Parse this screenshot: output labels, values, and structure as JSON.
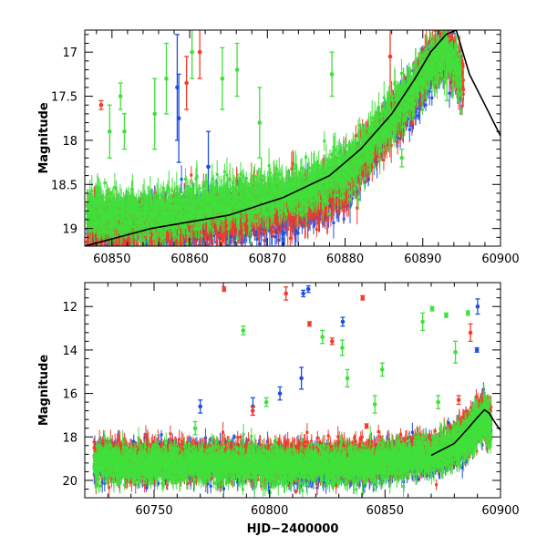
{
  "colors": {
    "blue": "#1f4fe0",
    "red": "#f43b28",
    "green": "#3fe03a",
    "model": "#000000"
  },
  "chart_data": [
    {
      "type": "scatter",
      "title": "",
      "xlabel": "",
      "ylabel": "Magnitude",
      "xlim": [
        60846.5,
        60900
      ],
      "ylim": [
        19.2,
        16.75
      ],
      "y_inverted": true,
      "x_ticks": [
        60850,
        60860,
        60870,
        60880,
        60890,
        60900
      ],
      "x_tick_labels": [
        "60850",
        "60860",
        "60870",
        "60880",
        "60890",
        "60900"
      ],
      "y_ticks": [
        17,
        17.5,
        18,
        18.5,
        19
      ],
      "y_tick_labels": [
        "17",
        "17.5",
        "18",
        "18.5",
        "19"
      ],
      "grid": false,
      "series": [
        {
          "color": "blue",
          "trend": [
            [
              60847,
              19.05
            ],
            [
              60855,
              18.95
            ],
            [
              60865,
              18.9
            ],
            [
              60875,
              18.75
            ],
            [
              60880,
              18.55
            ],
            [
              60884,
              18.0
            ],
            [
              60888,
              17.6
            ],
            [
              60891,
              17.2
            ],
            [
              60893,
              17.0
            ],
            [
              60894,
              17.2
            ],
            [
              60895,
              17.35
            ]
          ],
          "outliers": [
            [
              60858.4,
              17.4,
              0.6
            ],
            [
              60858.6,
              17.75,
              0.5
            ],
            [
              60862.4,
              18.3,
              0.4
            ],
            [
              60893.2,
              16.75,
              0.4
            ]
          ]
        },
        {
          "color": "red",
          "trend": [
            [
              60847,
              19.0
            ],
            [
              60855,
              18.95
            ],
            [
              60865,
              18.85
            ],
            [
              60875,
              18.7
            ],
            [
              60880,
              18.5
            ],
            [
              60884,
              18.0
            ],
            [
              60888,
              17.55
            ],
            [
              60891,
              17.1
            ],
            [
              60893,
              16.95
            ],
            [
              60894,
              17.15
            ],
            [
              60895.3,
              17.3
            ]
          ],
          "outliers": [
            [
              60848.6,
              17.6,
              0.05
            ],
            [
              60859.6,
              17.35,
              0.3
            ],
            [
              60861.3,
              17.0,
              0.3
            ],
            [
              60885.8,
              17.05,
              0.5
            ]
          ]
        },
        {
          "color": "green",
          "trend": [
            [
              60847,
              18.8
            ],
            [
              60855,
              18.85
            ],
            [
              60865,
              18.7
            ],
            [
              60875,
              18.55
            ],
            [
              60880,
              18.35
            ],
            [
              60884,
              17.95
            ],
            [
              60888,
              17.5
            ],
            [
              60891,
              17.15
            ],
            [
              60893,
              17.0
            ],
            [
              60895,
              17.3
            ]
          ],
          "outliers": [
            [
              60849.7,
              17.9,
              0.3
            ],
            [
              60851.1,
              17.5,
              0.15
            ],
            [
              60851.6,
              17.9,
              0.2
            ],
            [
              60855.5,
              17.7,
              0.4
            ],
            [
              60857.0,
              17.3,
              0.4
            ],
            [
              60860.3,
              17.0,
              0.3
            ],
            [
              60864.2,
              17.3,
              0.35
            ],
            [
              60866.1,
              17.2,
              0.3
            ],
            [
              60869.0,
              17.8,
              0.4
            ],
            [
              60878.3,
              17.25,
              0.25
            ],
            [
              60887.3,
              18.2,
              0.1
            ],
            [
              60893.1,
              17.2,
              0.35
            ]
          ]
        }
      ],
      "model_curve": {
        "x": [
          60846.5,
          60855,
          60865,
          60872,
          60878,
          60882,
          60886,
          60889,
          60891,
          60893,
          60894.3,
          60896,
          60898,
          60900
        ],
        "y": [
          19.2,
          19.0,
          18.85,
          18.65,
          18.4,
          18.1,
          17.7,
          17.3,
          17.0,
          16.8,
          16.75,
          17.25,
          17.6,
          17.95
        ]
      }
    },
    {
      "type": "scatter",
      "title": "",
      "xlabel": "HJD−2400000",
      "ylabel": "Magnitude",
      "xlim": [
        60720,
        60900
      ],
      "ylim": [
        20.8,
        10.9
      ],
      "y_inverted": true,
      "x_ticks": [
        60750,
        60800,
        60850,
        60900
      ],
      "x_tick_labels": [
        "60750",
        "60800",
        "60850",
        "60900"
      ],
      "y_ticks": [
        12,
        14,
        16,
        18,
        20
      ],
      "y_tick_labels": [
        "12",
        "14",
        "16",
        "18",
        "20"
      ],
      "grid": false,
      "series": [
        {
          "color": "blue",
          "trend": [
            [
              60725,
              19.1
            ],
            [
              60800,
              19.2
            ],
            [
              60840,
              19.3
            ],
            [
              60870,
              18.8
            ],
            [
              60882,
              18.3
            ],
            [
              60888,
              17.6
            ],
            [
              60893,
              17.0
            ],
            [
              60896,
              17.5
            ]
          ],
          "outliers": [
            [
              60814.6,
              11.4,
              0.15
            ],
            [
              60816.8,
              11.2,
              0.15
            ],
            [
              60831.7,
              12.7,
              0.2
            ],
            [
              60890.1,
              12.0,
              0.35
            ],
            [
              60889.8,
              14.0,
              0.1
            ],
            [
              60804.5,
              16.0,
              0.3
            ],
            [
              60813.8,
              15.3,
              0.5
            ],
            [
              60792.8,
              16.6,
              0.4
            ],
            [
              60770,
              16.6,
              0.3
            ],
            [
              60838.5,
              19.4,
              0.8
            ]
          ]
        },
        {
          "color": "red",
          "trend": [
            [
              60725,
              19.0
            ],
            [
              60800,
              19.05
            ],
            [
              60840,
              19.05
            ],
            [
              60870,
              18.7
            ],
            [
              60882,
              18.2
            ],
            [
              60888,
              17.5
            ],
            [
              60893,
              16.9
            ],
            [
              60896,
              17.3
            ]
          ],
          "outliers": [
            [
              60780.3,
              11.2,
              0.1
            ],
            [
              60807.1,
              11.4,
              0.3
            ],
            [
              60817.3,
              12.8,
              0.1
            ],
            [
              60827.1,
              13.6,
              0.15
            ],
            [
              60840.3,
              11.6,
              0.1
            ],
            [
              60887.0,
              13.2,
              0.4
            ],
            [
              60881.9,
              16.3,
              0.2
            ],
            [
              60792.7,
              16.8,
              0.2
            ],
            [
              60842,
              17.5,
              0.1
            ]
          ]
        },
        {
          "color": "green",
          "trend": [
            [
              60725,
              19.2
            ],
            [
              60800,
              19.3
            ],
            [
              60840,
              19.3
            ],
            [
              60870,
              18.9
            ],
            [
              60882,
              18.4
            ],
            [
              60888,
              17.7
            ],
            [
              60893,
              17.1
            ],
            [
              60896,
              17.6
            ]
          ],
          "outliers": [
            [
              60788.6,
              13.1,
              0.2
            ],
            [
              60822.9,
              13.4,
              0.3
            ],
            [
              60831.5,
              13.9,
              0.35
            ],
            [
              60833.7,
              15.3,
              0.4
            ],
            [
              60848.8,
              14.9,
              0.3
            ],
            [
              60866.3,
              12.7,
              0.4
            ],
            [
              60870.4,
              12.1,
              0.1
            ],
            [
              60876.5,
              12.4,
              0.1
            ],
            [
              60885.9,
              12.3,
              0.1
            ],
            [
              60880.5,
              14.1,
              0.5
            ],
            [
              60845.6,
              16.5,
              0.4
            ],
            [
              60798.6,
              16.4,
              0.2
            ],
            [
              60767.8,
              17.6,
              0.3
            ],
            [
              60873.0,
              16.4,
              0.3
            ]
          ]
        }
      ],
      "model_curve": {
        "x": [
          60870,
          60880,
          60886,
          60890,
          60893,
          60895,
          60898,
          60900
        ],
        "y": [
          18.85,
          18.3,
          17.6,
          17.1,
          16.75,
          16.9,
          17.4,
          17.7
        ]
      }
    }
  ]
}
